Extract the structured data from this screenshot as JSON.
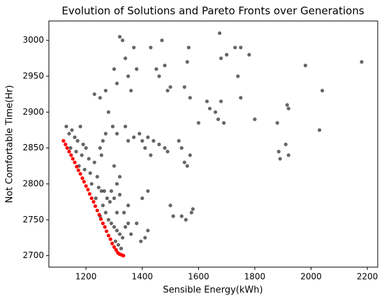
{
  "chart_data": {
    "type": "scatter",
    "title": "Evolution of Solutions and Pareto Fronts over Generations",
    "x_label": "Sensible Energy(kWh)",
    "y_label": "Not Comfortable Time(Hr)",
    "xlim": [
      1068,
      2237
    ],
    "ylim": [
      2684,
      3027
    ],
    "xticks": [
      1200,
      1400,
      1600,
      1800,
      2000,
      2200
    ],
    "yticks": [
      2700,
      2750,
      2800,
      2850,
      2900,
      2950,
      3000
    ],
    "series": [
      {
        "color": "#000000",
        "alpha": 0.6,
        "x": [
          1130,
          1140,
          1150,
          1160,
          1170,
          1180,
          1190,
          1145,
          1165,
          1185,
          1200,
          1210,
          1175,
          1195,
          1215,
          1230,
          1240,
          1220,
          1245,
          1255,
          1235,
          1260,
          1270,
          1250,
          1280,
          1290,
          1300,
          1310,
          1320,
          1305,
          1315,
          1325,
          1330,
          1340,
          1350,
          1360,
          1290,
          1300,
          1320,
          1335,
          1350,
          1310,
          1320,
          1230,
          1250,
          1270,
          1280,
          1300,
          1310,
          1320,
          1330,
          1340,
          1350,
          1360,
          1370,
          1380,
          1295,
          1310,
          1340,
          1350,
          1370,
          1390,
          1400,
          1410,
          1420,
          1430,
          1395,
          1410,
          1420,
          1380,
          1400,
          1420,
          1440,
          1430,
          1450,
          1460,
          1470,
          1480,
          1490,
          1500,
          1480,
          1490,
          1460,
          1500,
          1510,
          1530,
          1540,
          1550,
          1560,
          1570,
          1560,
          1565,
          1550,
          1570,
          1540,
          1555,
          1575,
          1580,
          1600,
          1630,
          1640,
          1660,
          1670,
          1680,
          1690,
          1675,
          1680,
          1700,
          1730,
          1750,
          1780,
          1740,
          1750,
          1800,
          1880,
          1885,
          1890,
          1910,
          1920,
          1915,
          1920,
          1980,
          2030,
          2040,
          2180,
          1250,
          1260,
          1270,
          1255,
          1265,
          1275,
          1285,
          1300,
          1310
        ],
        "values": [
          2880,
          2870,
          2875,
          2865,
          2860,
          2880,
          2855,
          2850,
          2845,
          2840,
          2850,
          2835,
          2825,
          2820,
          2815,
          2830,
          2810,
          2800,
          2795,
          2790,
          2780,
          2770,
          2760,
          2755,
          2750,
          2745,
          2740,
          2735,
          2730,
          2720,
          2715,
          2710,
          2725,
          2740,
          2745,
          2730,
          2790,
          2780,
          2785,
          2760,
          2770,
          2800,
          2810,
          2925,
          2920,
          2930,
          2900,
          2960,
          2940,
          3005,
          3000,
          2975,
          2950,
          2930,
          2990,
          2960,
          2880,
          2870,
          2880,
          2860,
          2865,
          2870,
          2860,
          2850,
          2865,
          2840,
          2720,
          2725,
          2735,
          2745,
          2780,
          2790,
          2860,
          2990,
          2960,
          2950,
          3000,
          2965,
          2930,
          2935,
          2850,
          2845,
          2855,
          2770,
          2755,
          2860,
          2850,
          2830,
          2825,
          2840,
          2970,
          2990,
          2935,
          2920,
          2755,
          2750,
          2760,
          2765,
          2885,
          2915,
          2905,
          2900,
          2890,
          2915,
          2885,
          3010,
          2975,
          2980,
          2990,
          2990,
          2980,
          2950,
          2920,
          2890,
          2885,
          2845,
          2835,
          2855,
          2840,
          2910,
          2905,
          2965,
          2875,
          2930,
          2970,
          2850,
          2860,
          2870,
          2840,
          2790,
          2780,
          2775,
          2825,
          2760
        ]
      },
      {
        "color": "#ff0000",
        "alpha": 1,
        "x": [
          1120,
          1127,
          1133,
          1140,
          1147,
          1153,
          1160,
          1167,
          1173,
          1180,
          1187,
          1193,
          1200,
          1207,
          1213,
          1220,
          1227,
          1233,
          1240,
          1247,
          1253,
          1260,
          1267,
          1273,
          1280,
          1287,
          1293,
          1300,
          1307,
          1313,
          1320,
          1327,
          1333
        ],
        "values": [
          2860,
          2855,
          2850,
          2845,
          2840,
          2835,
          2830,
          2824,
          2819,
          2814,
          2808,
          2803,
          2797,
          2792,
          2786,
          2780,
          2775,
          2769,
          2763,
          2757,
          2751,
          2745,
          2740,
          2734,
          2728,
          2723,
          2717,
          2712,
          2708,
          2704,
          2702,
          2701,
          2700
        ]
      }
    ]
  }
}
